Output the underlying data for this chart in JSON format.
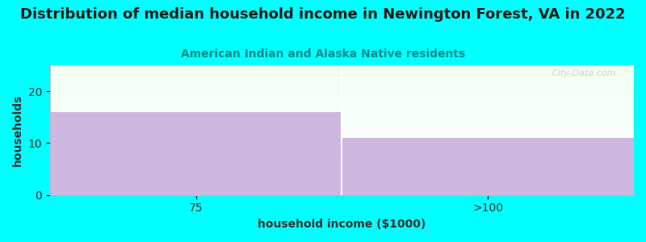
{
  "title": "Distribution of median household income in Newington Forest, VA in 2022",
  "subtitle": "American Indian and Alaska Native residents",
  "xlabel": "household income ($1000)",
  "ylabel": "households",
  "categories": [
    "75",
    ">100"
  ],
  "values": [
    16,
    11
  ],
  "bar_color": "#C4A8D8",
  "bar_alpha": 0.82,
  "background_color": "#00FFFF",
  "plot_bg_color_top": "#F0FFF4",
  "ylim": [
    0,
    25
  ],
  "yticks": [
    0,
    10,
    20
  ],
  "title_fontsize": 13,
  "subtitle_fontsize": 10,
  "subtitle_color": "#008B8B",
  "axis_label_fontsize": 10,
  "tick_fontsize": 10,
  "watermark": "City-Data.com",
  "bin_edges": [
    0,
    0.5,
    1.0
  ],
  "bin_centers": [
    0.25,
    0.75
  ]
}
